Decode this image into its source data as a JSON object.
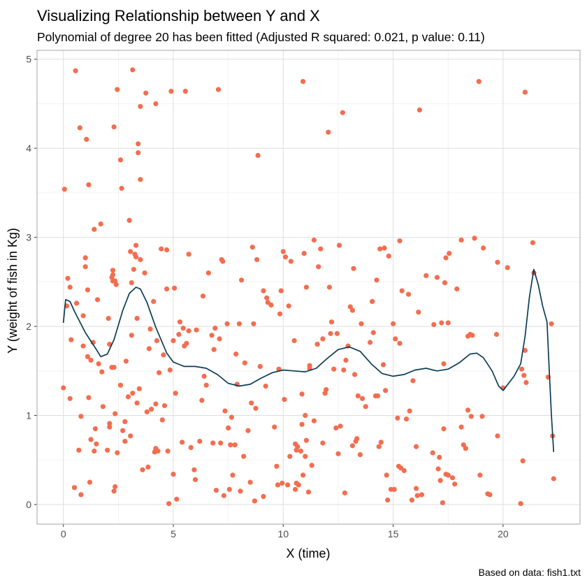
{
  "chart_data": {
    "type": "scatter",
    "title": "Visualizing Relationship between Y and X",
    "subtitle": "Polynomial of degree 20 has been fitted (Adjusted R squared: 0.021, p value: 0.11)",
    "xlabel": "X (time)",
    "ylabel": "Y (weight of fish in Kg)",
    "caption": "Based on data: fish1.txt",
    "xlim": [
      -1.2,
      23.5
    ],
    "ylim": [
      -0.22,
      5.1
    ],
    "xticks": [
      0,
      5,
      10,
      15,
      20
    ],
    "yticks": [
      0,
      1,
      2,
      3,
      4,
      5
    ],
    "grid": true,
    "legend": "none",
    "colors": {
      "points": "#f46d4f",
      "fit": "#0b3d56",
      "grid_major": "#dedede",
      "grid_minor": "#efefef",
      "border": "#b3b3b3"
    },
    "points": [
      [
        0.0,
        1.31
      ],
      [
        0.05,
        3.54
      ],
      [
        0.15,
        2.23
      ],
      [
        0.2,
        2.54
      ],
      [
        0.3,
        2.44
      ],
      [
        0.3,
        1.19
      ],
      [
        0.35,
        1.85
      ],
      [
        0.5,
        0.19
      ],
      [
        0.55,
        4.87
      ],
      [
        0.6,
        2.26
      ],
      [
        0.7,
        0.61
      ],
      [
        0.75,
        4.23
      ],
      [
        0.8,
        0.11
      ],
      [
        0.8,
        0.99
      ],
      [
        0.9,
        1.78
      ],
      [
        0.9,
        2.12
      ],
      [
        1.0,
        2.67
      ],
      [
        1.0,
        2.77
      ],
      [
        1.05,
        4.1
      ],
      [
        1.1,
        1.66
      ],
      [
        1.1,
        2.41
      ],
      [
        1.15,
        1.2
      ],
      [
        1.15,
        3.59
      ],
      [
        1.2,
        0.25
      ],
      [
        1.25,
        1.62
      ],
      [
        1.25,
        0.73
      ],
      [
        1.35,
        1.82
      ],
      [
        1.4,
        3.09
      ],
      [
        1.4,
        0.6
      ],
      [
        1.45,
        0.85
      ],
      [
        1.5,
        0.68
      ],
      [
        1.55,
        2.3
      ],
      [
        1.6,
        1.58
      ],
      [
        1.7,
        3.15
      ],
      [
        1.75,
        1.49
      ],
      [
        1.8,
        1.1
      ],
      [
        2.0,
        0.61
      ],
      [
        2.05,
        2.09
      ],
      [
        2.1,
        0.91
      ],
      [
        2.1,
        1.8
      ],
      [
        2.1,
        0.87
      ],
      [
        2.2,
        1.54
      ],
      [
        2.2,
        2.55
      ],
      [
        2.25,
        2.63
      ],
      [
        2.25,
        2.58
      ],
      [
        2.25,
        2.51
      ],
      [
        2.3,
        1.54
      ],
      [
        2.3,
        4.24
      ],
      [
        2.3,
        0.15
      ],
      [
        2.35,
        2.51
      ],
      [
        2.35,
        1.02
      ],
      [
        2.35,
        0.2
      ],
      [
        2.4,
        2.47
      ],
      [
        2.45,
        0.58
      ],
      [
        2.45,
        4.66
      ],
      [
        2.6,
        3.87
      ],
      [
        2.6,
        1.34
      ],
      [
        2.65,
        3.55
      ],
      [
        2.7,
        0.83
      ],
      [
        2.8,
        0.93
      ],
      [
        2.8,
        0.71
      ],
      [
        2.85,
        1.61
      ],
      [
        2.95,
        1.21
      ],
      [
        3.0,
        3.19
      ],
      [
        3.05,
        0.77
      ],
      [
        3.05,
        2.84
      ],
      [
        3.1,
        2.49
      ],
      [
        3.1,
        1.9
      ],
      [
        3.15,
        1.25
      ],
      [
        3.15,
        4.88
      ],
      [
        3.2,
        2.64
      ],
      [
        3.25,
        2.81
      ],
      [
        3.3,
        2.91
      ],
      [
        3.3,
        2.78
      ],
      [
        3.35,
        1.14
      ],
      [
        3.35,
        2.09
      ],
      [
        3.4,
        4.05
      ],
      [
        3.4,
        3.95
      ],
      [
        3.45,
        1.3
      ],
      [
        3.5,
        3.65
      ],
      [
        3.5,
        2.75
      ],
      [
        3.5,
        4.47
      ],
      [
        3.6,
        0.39
      ],
      [
        3.7,
        2.6
      ],
      [
        3.75,
        4.62
      ],
      [
        3.8,
        1.04
      ],
      [
        3.85,
        0.42
      ],
      [
        3.9,
        1.75
      ],
      [
        3.95,
        1.97
      ],
      [
        4.0,
        1.07
      ],
      [
        4.1,
        2.28
      ],
      [
        4.15,
        0.59
      ],
      [
        4.2,
        4.5
      ],
      [
        4.2,
        1.13
      ],
      [
        4.2,
        0.63
      ],
      [
        4.25,
        1.84
      ],
      [
        4.3,
        0.6
      ],
      [
        4.35,
        1.48
      ],
      [
        4.45,
        2.87
      ],
      [
        4.5,
        0.95
      ],
      [
        4.55,
        1.68
      ],
      [
        4.6,
        1.11
      ],
      [
        4.7,
        2.86
      ],
      [
        4.7,
        2.42
      ],
      [
        4.75,
        0.6
      ],
      [
        4.8,
        0.01
      ],
      [
        4.85,
        1.51
      ],
      [
        4.9,
        4.64
      ],
      [
        5.0,
        0.34
      ],
      [
        5.0,
        1.84
      ],
      [
        5.05,
        2.43
      ],
      [
        5.1,
        1.25
      ],
      [
        5.15,
        0.06
      ],
      [
        5.25,
        1.91
      ],
      [
        5.3,
        2.05
      ],
      [
        5.4,
        0.7
      ],
      [
        5.45,
        1.98
      ],
      [
        5.5,
        1.78
      ],
      [
        5.55,
        4.64
      ],
      [
        5.6,
        1.81
      ],
      [
        5.7,
        1.95
      ],
      [
        5.7,
        2.81
      ],
      [
        5.8,
        0.64
      ],
      [
        5.95,
        0.39
      ],
      [
        6.0,
        0.28
      ],
      [
        6.05,
        1.96
      ],
      [
        6.2,
        0.71
      ],
      [
        6.3,
        1.17
      ],
      [
        6.35,
        2.34
      ],
      [
        6.4,
        1.44
      ],
      [
        6.5,
        1.34
      ],
      [
        6.6,
        2.6
      ],
      [
        6.75,
        1.9
      ],
      [
        6.8,
        0.69
      ],
      [
        6.85,
        1.74
      ],
      [
        6.9,
        1.98
      ],
      [
        6.95,
        0.16
      ],
      [
        7.05,
        4.66
      ],
      [
        7.1,
        1.86
      ],
      [
        7.15,
        0.69
      ],
      [
        7.2,
        2.75
      ],
      [
        7.25,
        2.73
      ],
      [
        7.3,
        0.1
      ],
      [
        7.35,
        1.05
      ],
      [
        7.45,
        2.03
      ],
      [
        7.5,
        0.86
      ],
      [
        7.55,
        0.17
      ],
      [
        7.6,
        0.67
      ],
      [
        7.65,
        0.98
      ],
      [
        7.7,
        0.33
      ],
      [
        7.8,
        0.67
      ],
      [
        7.85,
        1.69
      ],
      [
        7.9,
        1.35
      ],
      [
        8.0,
        2.03
      ],
      [
        8.05,
        0.15
      ],
      [
        8.1,
        2.52
      ],
      [
        8.2,
        0.54
      ],
      [
        8.25,
        1.59
      ],
      [
        8.4,
        0.83
      ],
      [
        8.5,
        0.25
      ],
      [
        8.55,
        1.14
      ],
      [
        8.6,
        2.89
      ],
      [
        8.65,
        2.03
      ],
      [
        8.7,
        0.04
      ],
      [
        8.75,
        1.08
      ],
      [
        8.8,
        2.75
      ],
      [
        8.85,
        3.92
      ],
      [
        8.95,
        1.55
      ],
      [
        9.1,
        0.09
      ],
      [
        9.1,
        2.4
      ],
      [
        9.2,
        1.33
      ],
      [
        9.25,
        2.32
      ],
      [
        9.3,
        2.27
      ],
      [
        9.45,
        2.24
      ],
      [
        9.6,
        0.87
      ],
      [
        9.7,
        0.43
      ],
      [
        9.75,
        0.22
      ],
      [
        9.8,
        1.52
      ],
      [
        9.85,
        2.14
      ],
      [
        9.9,
        2.4
      ],
      [
        9.95,
        0.24
      ],
      [
        10.0,
        2.84
      ],
      [
        10.05,
        1.18
      ],
      [
        10.1,
        2.78
      ],
      [
        10.2,
        0.22
      ],
      [
        10.25,
        2.23
      ],
      [
        10.3,
        0.54
      ],
      [
        10.35,
        2.73
      ],
      [
        10.5,
        1.84
      ],
      [
        10.55,
        0.68
      ],
      [
        10.55,
        0.17
      ],
      [
        10.6,
        0.61
      ],
      [
        10.6,
        0.24
      ],
      [
        10.65,
        0.65
      ],
      [
        10.7,
        0.22
      ],
      [
        10.8,
        0.6
      ],
      [
        10.85,
        0.9
      ],
      [
        10.85,
        1.24
      ],
      [
        10.9,
        0.33
      ],
      [
        10.9,
        4.75
      ],
      [
        10.95,
        2.82
      ],
      [
        11.0,
        1.0
      ],
      [
        11.0,
        0.54
      ],
      [
        11.05,
        0.72
      ],
      [
        11.05,
        2.44
      ],
      [
        11.15,
        0.14
      ],
      [
        11.2,
        1.56
      ],
      [
        11.2,
        1.53
      ],
      [
        11.3,
        0.44
      ],
      [
        11.4,
        2.97
      ],
      [
        11.4,
        0.94
      ],
      [
        11.55,
        1.8
      ],
      [
        11.6,
        2.67
      ],
      [
        11.7,
        2.87
      ],
      [
        11.8,
        0.69
      ],
      [
        11.8,
        1.86
      ],
      [
        11.9,
        1.25
      ],
      [
        11.95,
        1.29
      ],
      [
        12.05,
        4.18
      ],
      [
        12.1,
        2.44
      ],
      [
        12.15,
        1.92
      ],
      [
        12.2,
        2.05
      ],
      [
        12.3,
        1.52
      ],
      [
        12.4,
        0.86
      ],
      [
        12.45,
        1.92
      ],
      [
        12.5,
        0.57
      ],
      [
        12.55,
        2.91
      ],
      [
        12.6,
        0.88
      ],
      [
        12.7,
        4.4
      ],
      [
        12.75,
        1.51
      ],
      [
        12.8,
        0.13
      ],
      [
        12.85,
        1.62
      ],
      [
        12.95,
        1.78
      ],
      [
        13.05,
        2.22
      ],
      [
        13.15,
        2.18
      ],
      [
        13.15,
        0.66
      ],
      [
        13.2,
        2.65
      ],
      [
        13.25,
        1.46
      ],
      [
        13.3,
        0.71
      ],
      [
        13.35,
        0.74
      ],
      [
        13.4,
        1.22
      ],
      [
        13.5,
        0.56
      ],
      [
        13.55,
        2.03
      ],
      [
        13.6,
        1.19
      ],
      [
        13.75,
        1.1
      ],
      [
        13.95,
        1.82
      ],
      [
        14.05,
        2.28
      ],
      [
        14.1,
        1.93
      ],
      [
        14.2,
        1.22
      ],
      [
        14.25,
        2.52
      ],
      [
        14.3,
        1.22
      ],
      [
        14.35,
        0.65
      ],
      [
        14.4,
        2.87
      ],
      [
        14.45,
        0.7
      ],
      [
        14.55,
        1.57
      ],
      [
        14.6,
        2.88
      ],
      [
        14.65,
        1.28
      ],
      [
        14.7,
        0.33
      ],
      [
        14.75,
        0.05
      ],
      [
        14.8,
        2.79
      ],
      [
        14.9,
        0.17
      ],
      [
        15.0,
        2.03
      ],
      [
        15.05,
        0.17
      ],
      [
        15.1,
        1.86
      ],
      [
        15.2,
        0.97
      ],
      [
        15.25,
        0.43
      ],
      [
        15.3,
        1.81
      ],
      [
        15.3,
        2.96
      ],
      [
        15.35,
        0.41
      ],
      [
        15.4,
        2.4
      ],
      [
        15.5,
        0.38
      ],
      [
        15.6,
        0.96
      ],
      [
        15.7,
        2.36
      ],
      [
        15.75,
        1.05
      ],
      [
        15.85,
        0.05
      ],
      [
        15.9,
        1.39
      ],
      [
        16.05,
        0.65
      ],
      [
        16.05,
        0.18
      ],
      [
        16.1,
        0.1
      ],
      [
        16.15,
        2.16
      ],
      [
        16.2,
        4.43
      ],
      [
        16.3,
        0.11
      ],
      [
        16.5,
        2.57
      ],
      [
        16.8,
        0.58
      ],
      [
        16.85,
        2.02
      ],
      [
        17.0,
        2.55
      ],
      [
        17.05,
        0.4
      ],
      [
        17.1,
        0.53
      ],
      [
        17.15,
        0.27
      ],
      [
        17.2,
        2.04
      ],
      [
        17.25,
        0.02
      ],
      [
        17.3,
        0.85
      ],
      [
        17.3,
        1.58
      ],
      [
        17.35,
        2.49
      ],
      [
        17.4,
        2.77
      ],
      [
        17.4,
        0.34
      ],
      [
        17.5,
        0.33
      ],
      [
        17.5,
        2.04
      ],
      [
        17.55,
        2.82
      ],
      [
        17.7,
        0.3
      ],
      [
        17.8,
        0.23
      ],
      [
        17.9,
        2.42
      ],
      [
        18.1,
        0.87
      ],
      [
        18.1,
        2.97
      ],
      [
        18.2,
        0.67
      ],
      [
        18.3,
        0.63
      ],
      [
        18.4,
        1.06
      ],
      [
        18.4,
        1.89
      ],
      [
        18.5,
        1.91
      ],
      [
        18.55,
        0.99
      ],
      [
        18.6,
        1.9
      ],
      [
        18.7,
        2.99
      ],
      [
        18.9,
        4.75
      ],
      [
        18.95,
        0.33
      ],
      [
        19.05,
        0.99
      ],
      [
        19.1,
        2.88
      ],
      [
        19.3,
        0.12
      ],
      [
        19.4,
        0.11
      ],
      [
        19.7,
        1.91
      ],
      [
        19.75,
        0.77
      ],
      [
        19.75,
        2.72
      ],
      [
        20.0,
        1.31
      ],
      [
        20.2,
        2.66
      ],
      [
        20.8,
        0.01
      ],
      [
        20.85,
        1.52
      ],
      [
        20.9,
        0.49
      ],
      [
        20.95,
        1.45
      ],
      [
        21.0,
        4.63
      ],
      [
        21.0,
        1.73
      ],
      [
        21.05,
        1.37
      ],
      [
        21.35,
        2.94
      ],
      [
        21.4,
        2.6
      ],
      [
        22.05,
        1.43
      ],
      [
        22.2,
        2.03
      ],
      [
        22.25,
        0.77
      ],
      [
        22.3,
        0.29
      ]
    ],
    "fit_line": [
      [
        0.0,
        2.04
      ],
      [
        0.1,
        2.3
      ],
      [
        0.3,
        2.28
      ],
      [
        0.5,
        2.17
      ],
      [
        1.0,
        1.93
      ],
      [
        1.5,
        1.74
      ],
      [
        1.7,
        1.66
      ],
      [
        2.0,
        1.69
      ],
      [
        2.3,
        1.85
      ],
      [
        2.7,
        2.18
      ],
      [
        3.0,
        2.37
      ],
      [
        3.3,
        2.44
      ],
      [
        3.5,
        2.42
      ],
      [
        3.8,
        2.27
      ],
      [
        4.2,
        1.99
      ],
      [
        4.7,
        1.7
      ],
      [
        5.0,
        1.6
      ],
      [
        5.5,
        1.55
      ],
      [
        6.0,
        1.55
      ],
      [
        6.5,
        1.53
      ],
      [
        7.0,
        1.46
      ],
      [
        7.5,
        1.36
      ],
      [
        8.0,
        1.33
      ],
      [
        8.5,
        1.35
      ],
      [
        9.0,
        1.42
      ],
      [
        9.5,
        1.48
      ],
      [
        10.0,
        1.51
      ],
      [
        10.5,
        1.5
      ],
      [
        11.0,
        1.49
      ],
      [
        11.5,
        1.53
      ],
      [
        12.0,
        1.64
      ],
      [
        12.5,
        1.74
      ],
      [
        13.0,
        1.77
      ],
      [
        13.5,
        1.72
      ],
      [
        14.0,
        1.58
      ],
      [
        14.5,
        1.47
      ],
      [
        15.0,
        1.44
      ],
      [
        15.5,
        1.46
      ],
      [
        16.0,
        1.51
      ],
      [
        16.5,
        1.53
      ],
      [
        17.0,
        1.5
      ],
      [
        17.5,
        1.52
      ],
      [
        18.0,
        1.59
      ],
      [
        18.5,
        1.69
      ],
      [
        18.8,
        1.7
      ],
      [
        19.1,
        1.65
      ],
      [
        19.5,
        1.5
      ],
      [
        19.8,
        1.33
      ],
      [
        20.0,
        1.28
      ],
      [
        20.5,
        1.44
      ],
      [
        20.8,
        1.58
      ],
      [
        21.0,
        1.89
      ],
      [
        21.2,
        2.33
      ],
      [
        21.4,
        2.64
      ],
      [
        21.6,
        2.47
      ],
      [
        21.8,
        2.23
      ],
      [
        22.0,
        2.05
      ],
      [
        22.1,
        1.5
      ],
      [
        22.2,
        1.0
      ],
      [
        22.3,
        0.59
      ]
    ]
  }
}
